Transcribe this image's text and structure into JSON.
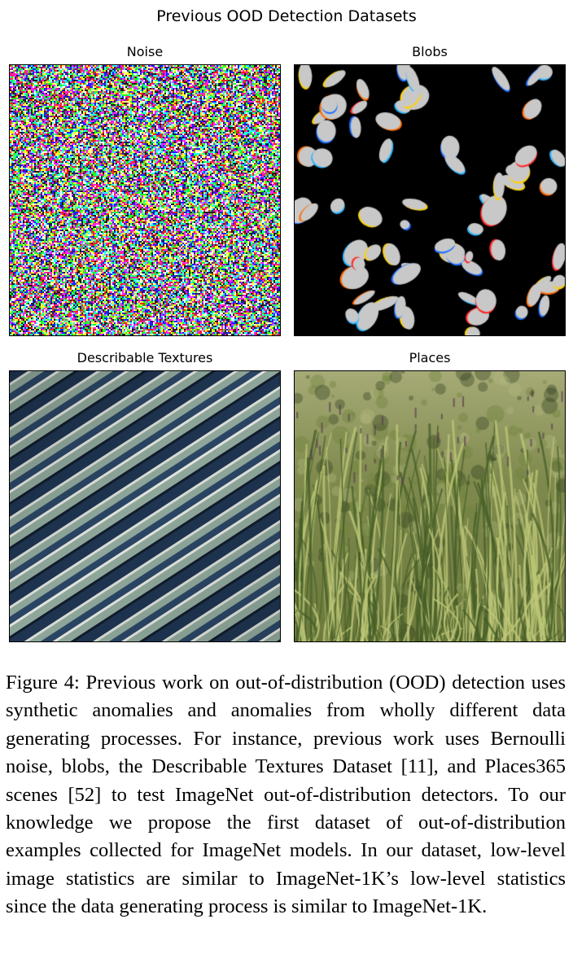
{
  "figure": {
    "title": "Previous OOD Detection Datasets",
    "panels": [
      {
        "title": "Noise",
        "icon": "noise-image"
      },
      {
        "title": "Blobs",
        "icon": "blobs-image"
      },
      {
        "title": "Describable Textures",
        "icon": "striped-texture-image"
      },
      {
        "title": "Places",
        "icon": "grass-field-photo"
      }
    ]
  },
  "caption": "Figure 4: Previous work on out-of-distribution (OOD) detection uses synthetic anomalies and anomalies from wholly different data generating processes. For instance, previous work uses Bernoulli noise, blobs, the Describable Textures Dataset [11], and Places365 scenes [52] to test ImageNet out-of-distribution detectors. To our knowledge we propose the first dataset of out-of-distribution examples collected for ImageNet models. In our dataset, low-level image statistics are similar to ImageNet-1K’s low-level statistics since the data generating process is similar to ImageNet-1K.",
  "colors": {
    "texture_light": "#8fa79b",
    "texture_dark": "#1e3450",
    "blob_fill": "#c8c8c8",
    "grass_base": "#8a9a5a"
  }
}
